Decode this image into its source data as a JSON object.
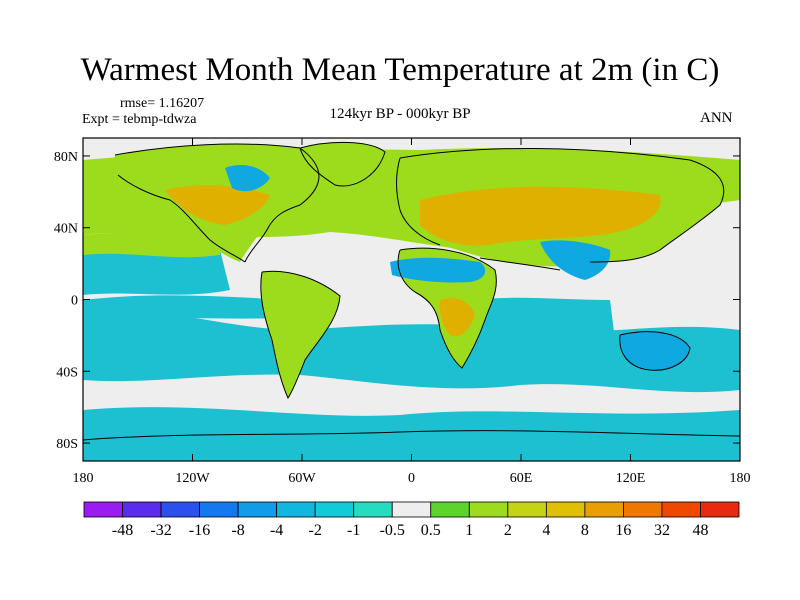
{
  "title": "Warmest Month Mean Temperature at 2m (in C)",
  "rmse_label": "rmse= 1.16207",
  "expt_label": "Expt = tebmp-tdwza",
  "period_label": "124kyr BP - 000kyr BP",
  "season_label": "ANN",
  "map": {
    "lon_ticks": [
      "180",
      "120W",
      "60W",
      "0",
      "60E",
      "120E",
      "180"
    ],
    "lat_ticks": [
      "80N",
      "40N",
      "0",
      "40S",
      "80S"
    ],
    "lat_tick_values": [
      80,
      40,
      0,
      -40,
      -80
    ],
    "lat_range": [
      -90,
      90
    ],
    "lon_range": [
      -180,
      180
    ],
    "ocean_color": "#eeeeee",
    "land_warm_color": "#9ddc1c",
    "land_hot_color": "#e0b000",
    "cool_color": "#1cc0d0",
    "deep_cool_color": "#10a8e0",
    "coast_color": "#000000"
  },
  "colorbar": {
    "labels": [
      "-48",
      "-32",
      "-16",
      "-8",
      "-4",
      "-2",
      "-1",
      "-0.5",
      "0.5",
      "1",
      "2",
      "4",
      "8",
      "16",
      "32",
      "48"
    ],
    "colors": [
      "#9a1cf0",
      "#5a2cf0",
      "#2a50f0",
      "#1478f0",
      "#109ce8",
      "#10b8e0",
      "#10ccd8",
      "#24dcc0",
      "#eeeeee",
      "#5cd42c",
      "#9ddc1c",
      "#c4d414",
      "#e0c000",
      "#e8a000",
      "#f07800",
      "#f04800",
      "#e82a10"
    ]
  }
}
